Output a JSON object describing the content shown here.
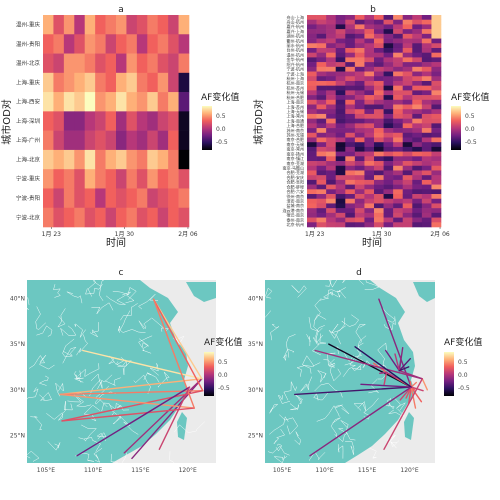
{
  "figure": {
    "legend_title": "AF变化值",
    "legend_ticks": [
      "0.5",
      "0.0",
      "-0.5"
    ],
    "colors": {
      "panel_bg": "#ebebeb",
      "sea": "#ebebeb",
      "land": "#6cc7c1",
      "border": "#ffffff",
      "text": "#222222",
      "ramp": [
        "#000004",
        "#2c115f",
        "#721f81",
        "#b73779",
        "#f1605d",
        "#feb078",
        "#fcfdbf"
      ]
    }
  },
  "chart_data": [
    {
      "panel": "a",
      "type": "heatmap",
      "title": "a",
      "xlabel": "时间",
      "ylabel": "城市OD对",
      "x_ticks": [
        "1月 23",
        "1月 30",
        "2月 06"
      ],
      "y_categories": [
        "温州-重庆",
        "温州-贵阳",
        "温州-北京",
        "上海-重庆",
        "上海-西安",
        "上海-深圳",
        "上海-广州",
        "上海-北京",
        "宁波-重庆",
        "宁波-贵阳",
        "宁波-北京"
      ],
      "columns": 14,
      "values": [
        [
          0.5,
          0.1,
          0.4,
          -0.1,
          0.5,
          0.2,
          0.3,
          0.4,
          0.0,
          0.1,
          0.3,
          0.2,
          0.0,
          0.5
        ],
        [
          0.2,
          0.3,
          -0.1,
          0.1,
          0.4,
          0.3,
          0.0,
          0.2,
          0.3,
          -0.1,
          0.2,
          0.3,
          0.1,
          -0.1
        ],
        [
          0.1,
          0.0,
          0.4,
          0.4,
          0.3,
          0.1,
          0.2,
          -0.1,
          0.4,
          0.2,
          0.3,
          0.1,
          0.0,
          0.3
        ],
        [
          0.6,
          0.3,
          0.4,
          0.5,
          0.6,
          0.3,
          0.2,
          0.5,
          0.6,
          0.3,
          0.2,
          0.4,
          0.0,
          -0.8
        ],
        [
          0.7,
          0.5,
          0.7,
          0.6,
          0.8,
          0.4,
          0.5,
          0.7,
          0.5,
          0.4,
          0.6,
          0.3,
          0.5,
          -0.5
        ],
        [
          0.2,
          0.1,
          -0.3,
          -0.3,
          -0.1,
          0.0,
          0.2,
          -0.2,
          0.1,
          -0.1,
          -0.2,
          0.0,
          0.1,
          -0.9
        ],
        [
          0.3,
          0.0,
          -0.2,
          -0.2,
          0.0,
          0.1,
          0.0,
          -0.3,
          -0.1,
          -0.2,
          0.0,
          -0.2,
          0.2,
          -0.9
        ],
        [
          0.6,
          0.5,
          0.6,
          0.4,
          0.7,
          0.3,
          0.5,
          0.6,
          0.4,
          0.3,
          0.6,
          0.5,
          0.3,
          -1.0
        ],
        [
          0.4,
          0.2,
          0.3,
          0.1,
          0.5,
          0.3,
          0.2,
          0.0,
          0.3,
          0.1,
          0.4,
          0.2,
          0.3,
          0.1
        ],
        [
          0.2,
          0.0,
          0.3,
          0.1,
          0.2,
          -0.1,
          0.2,
          0.1,
          0.2,
          0.3,
          0.0,
          0.1,
          0.2,
          0.3
        ],
        [
          0.3,
          0.1,
          0.2,
          0.3,
          0.1,
          0.2,
          0.0,
          0.2,
          0.3,
          0.1,
          0.2,
          0.0,
          0.2,
          0.1
        ]
      ],
      "color_scale": {
        "min": -1.0,
        "max": 0.8
      }
    },
    {
      "panel": "b",
      "type": "heatmap",
      "title": "b",
      "xlabel": "时间",
      "ylabel": "城市OD对",
      "x_ticks": [
        "1月 23",
        "1月 30",
        "2月 06"
      ],
      "y_categories": [
        "舟山-上海",
        "舟山-杭州",
        "嘉兴-杭州",
        "嘉兴-上海",
        "湖州-杭州",
        "衢州-杭州",
        "丽水-杭州",
        "台州-杭州",
        "温州-杭州",
        "金华-杭州",
        "绍兴-杭州",
        "宁波-杭州",
        "宁波-上海",
        "杭州-上海",
        "杭州-南京",
        "杭州-苏州",
        "杭州-无锡",
        "杭州-合肥",
        "上海-南京",
        "上海-苏州",
        "上海-无锡",
        "上海-常州",
        "上海-南通",
        "上海-合肥",
        "苏州-南京",
        "苏州-无锡",
        "南京-合肥",
        "南京-无锡",
        "南京-常州",
        "南京-扬州",
        "南京-镇江",
        "南京-芜湖",
        "南京-马鞍山",
        "合肥-芜湖",
        "合肥-安庆",
        "合肥-阜阳",
        "合肥-蚌埠",
        "合肥-六安",
        "徐州-南京",
        "淮安-南京",
        "盐城-南京",
        "连云港-南京",
        "宿迁-南京",
        "泰州-南京",
        "北京-杭州"
      ],
      "columns": 14,
      "color_scale": {
        "min": -1.0,
        "max": 0.8
      }
    },
    {
      "panel": "c",
      "type": "map",
      "title": "c",
      "x_ticks": [
        "105°E",
        "110°E",
        "115°E",
        "120°E"
      ],
      "y_ticks": [
        "25°N",
        "30°N",
        "35°N",
        "40°N"
      ],
      "xlim": [
        103,
        123
      ],
      "ylim": [
        22,
        42
      ],
      "flows": [
        {
          "from": [
            106.5,
            29.5
          ],
          "to": [
            121.5,
            31.2
          ],
          "value": 0.5
        },
        {
          "from": [
            108.9,
            34.3
          ],
          "to": [
            121.5,
            31.2
          ],
          "value": 0.7
        },
        {
          "from": [
            114.1,
            22.5
          ],
          "to": [
            121.5,
            31.2
          ],
          "value": -0.3
        },
        {
          "from": [
            113.3,
            23.1
          ],
          "to": [
            121.5,
            31.2
          ],
          "value": -0.2
        },
        {
          "from": [
            116.4,
            39.9
          ],
          "to": [
            121.5,
            31.2
          ],
          "value": 0.6
        },
        {
          "from": [
            106.5,
            29.5
          ],
          "to": [
            121.6,
            29.9
          ],
          "value": 0.3
        },
        {
          "from": [
            106.7,
            26.6
          ],
          "to": [
            121.6,
            29.9
          ],
          "value": 0.1
        },
        {
          "from": [
            116.4,
            39.9
          ],
          "to": [
            121.6,
            29.9
          ],
          "value": 0.2
        },
        {
          "from": [
            106.5,
            29.5
          ],
          "to": [
            120.7,
            28.0
          ],
          "value": 0.4
        },
        {
          "from": [
            106.7,
            26.6
          ],
          "to": [
            120.7,
            28.0
          ],
          "value": 0.1
        },
        {
          "from": [
            116.4,
            39.9
          ],
          "to": [
            120.7,
            28.0
          ],
          "value": 0.3
        },
        {
          "from": [
            108.3,
            22.8
          ],
          "to": [
            120.2,
            30.3
          ],
          "value": -0.4
        },
        {
          "from": [
            117.0,
            23.5
          ],
          "to": [
            120.2,
            30.3
          ],
          "value": 0.0
        }
      ]
    },
    {
      "panel": "d",
      "type": "map",
      "title": "d",
      "x_ticks": [
        "105°E",
        "110°E",
        "115°E",
        "120°E"
      ],
      "y_ticks": [
        "25°N",
        "30°N",
        "35°N",
        "40°N"
      ],
      "xlim": [
        103,
        123
      ],
      "ylim": [
        22,
        42
      ],
      "flows": [
        {
          "from": [
            116.4,
            39.9
          ],
          "to": [
            120.2,
            30.3
          ],
          "value": -0.3
        },
        {
          "from": [
            110.5,
            35.0
          ],
          "to": [
            120.2,
            30.3
          ],
          "value": -0.9
        },
        {
          "from": [
            117.3,
            31.9
          ],
          "to": [
            120.2,
            30.3
          ],
          "value": 0.1
        },
        {
          "from": [
            118.8,
            32.1
          ],
          "to": [
            121.5,
            31.2
          ],
          "value": -0.2
        },
        {
          "from": [
            117.2,
            34.3
          ],
          "to": [
            118.8,
            32.1
          ],
          "value": -0.4
        },
        {
          "from": [
            119.0,
            33.6
          ],
          "to": [
            118.8,
            32.1
          ],
          "value": -0.2
        },
        {
          "from": [
            120.1,
            33.4
          ],
          "to": [
            118.8,
            32.1
          ],
          "value": -0.5
        },
        {
          "from": [
            119.2,
            34.6
          ],
          "to": [
            118.8,
            32.1
          ],
          "value": -0.3
        },
        {
          "from": [
            118.3,
            33.9
          ],
          "to": [
            118.8,
            32.1
          ],
          "value": -0.1
        },
        {
          "from": [
            119.9,
            32.5
          ],
          "to": [
            118.8,
            32.1
          ],
          "value": -0.6
        },
        {
          "from": [
            115.8,
            32.9
          ],
          "to": [
            117.3,
            31.9
          ],
          "value": 0.2
        },
        {
          "from": [
            117.0,
            30.5
          ],
          "to": [
            117.3,
            31.9
          ],
          "value": 0.0
        },
        {
          "from": [
            116.5,
            31.8
          ],
          "to": [
            117.3,
            31.9
          ],
          "value": -0.2
        },
        {
          "from": [
            118.4,
            31.3
          ],
          "to": [
            117.3,
            31.9
          ],
          "value": -0.1
        },
        {
          "from": [
            122.1,
            30.0
          ],
          "to": [
            121.5,
            31.2
          ],
          "value": 0.4
        },
        {
          "from": [
            120.8,
            30.8
          ],
          "to": [
            120.2,
            30.3
          ],
          "value": 0.3
        },
        {
          "from": [
            120.1,
            30.9
          ],
          "to": [
            120.2,
            30.3
          ],
          "value": 0.2
        },
        {
          "from": [
            118.9,
            28.9
          ],
          "to": [
            120.2,
            30.3
          ],
          "value": 0.0
        },
        {
          "from": [
            119.9,
            28.5
          ],
          "to": [
            120.2,
            30.3
          ],
          "value": 0.1
        },
        {
          "from": [
            121.4,
            28.7
          ],
          "to": [
            120.2,
            30.3
          ],
          "value": 0.2
        },
        {
          "from": [
            120.7,
            28.0
          ],
          "to": [
            120.2,
            30.3
          ],
          "value": 0.3
        },
        {
          "from": [
            119.6,
            29.1
          ],
          "to": [
            120.2,
            30.3
          ],
          "value": 0.1
        },
        {
          "from": [
            120.6,
            30.0
          ],
          "to": [
            120.2,
            30.3
          ],
          "value": 0.2
        },
        {
          "from": [
            121.6,
            29.9
          ],
          "to": [
            120.2,
            30.3
          ],
          "value": 0.0
        },
        {
          "from": [
            106.5,
            29.5
          ],
          "to": [
            120.2,
            30.3
          ],
          "value": -0.6
        },
        {
          "from": [
            114.3,
            30.6
          ],
          "to": [
            120.2,
            30.3
          ],
          "value": -0.4
        },
        {
          "from": [
            108.9,
            34.3
          ],
          "to": [
            121.5,
            31.2
          ],
          "value": -0.2
        },
        {
          "from": [
            113.6,
            34.7
          ],
          "to": [
            120.2,
            30.3
          ],
          "value": -0.7
        },
        {
          "from": [
            108.3,
            22.8
          ],
          "to": [
            120.2,
            30.3
          ],
          "value": -0.3
        },
        {
          "from": [
            117.0,
            23.5
          ],
          "to": [
            121.5,
            31.2
          ],
          "value": 0.0
        }
      ]
    }
  ]
}
